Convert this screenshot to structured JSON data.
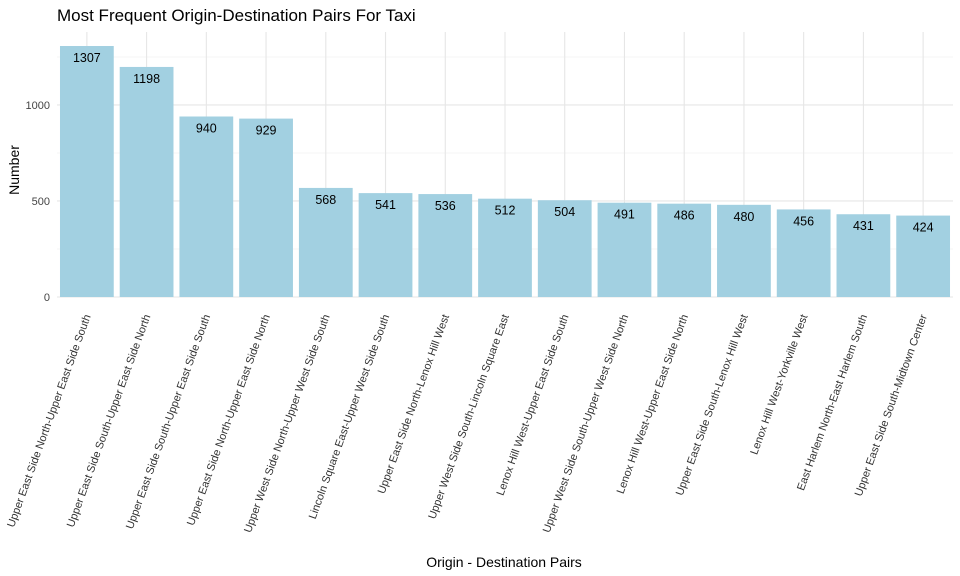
{
  "chart_data": {
    "type": "bar",
    "title": "Most Frequent Origin-Destination Pairs For Taxi",
    "xlabel": "Origin - Destination Pairs",
    "ylabel": "Number",
    "ylim": [
      0,
      1380
    ],
    "yticks": [
      0,
      500,
      1000
    ],
    "grid": true,
    "bar_color": "#a2d0e1",
    "categories": [
      "Upper East Side North-Upper East Side South",
      "Upper East Side South-Upper East Side North",
      "Upper East Side South-Upper East Side South",
      "Upper East Side North-Upper East Side North",
      "Upper West Side North-Upper West Side South",
      "Lincoln Square East-Upper West Side South",
      "Upper East Side North-Lenox Hill West",
      "Upper West Side South-Lincoln Square East",
      "Lenox Hill West-Upper East Side South",
      "Upper West Side South-Upper West Side North",
      "Lenox Hill West-Upper East Side North",
      "Upper East Side South-Lenox Hill West",
      "Lenox Hill West-Yorkville West",
      "East Harlem North-East Harlem South",
      "Upper East Side South-Midtown Center"
    ],
    "values": [
      1307,
      1198,
      940,
      929,
      568,
      541,
      536,
      512,
      504,
      491,
      486,
      480,
      456,
      431,
      424
    ]
  }
}
